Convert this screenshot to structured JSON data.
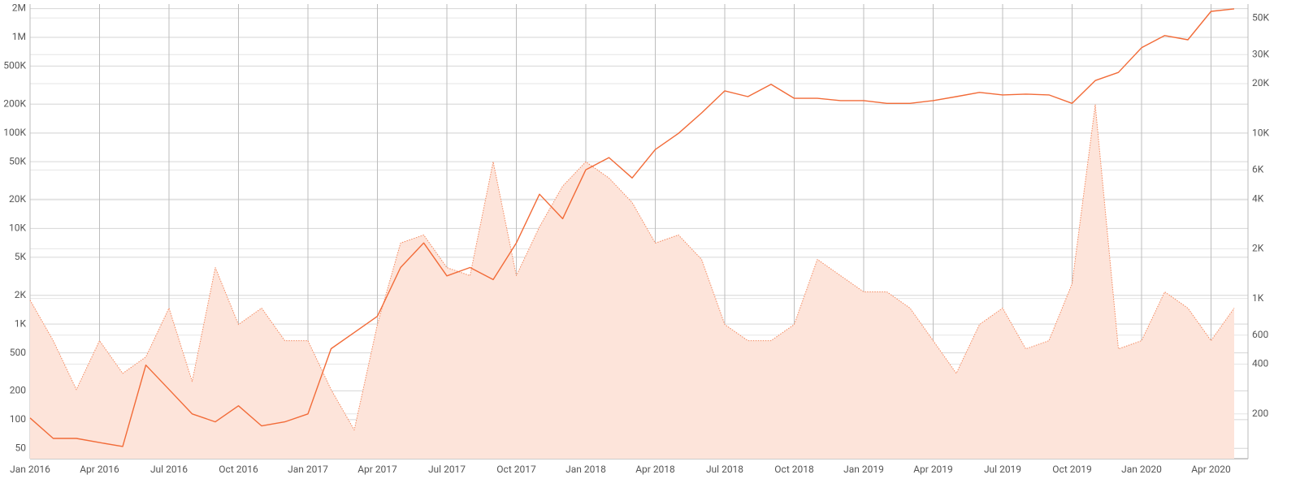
{
  "chart_data": {
    "type": "line",
    "x": [
      "2016-01",
      "2016-02",
      "2016-03",
      "2016-04",
      "2016-05",
      "2016-06",
      "2016-07",
      "2016-08",
      "2016-09",
      "2016-10",
      "2016-11",
      "2016-12",
      "2017-01",
      "2017-02",
      "2017-03",
      "2017-04",
      "2017-05",
      "2017-06",
      "2017-07",
      "2017-08",
      "2017-09",
      "2017-10",
      "2017-11",
      "2017-12",
      "2018-01",
      "2018-02",
      "2018-03",
      "2018-04",
      "2018-05",
      "2018-06",
      "2018-07",
      "2018-08",
      "2018-09",
      "2018-10",
      "2018-11",
      "2018-12",
      "2019-01",
      "2019-02",
      "2019-03",
      "2019-04",
      "2019-05",
      "2019-06",
      "2019-07",
      "2019-08",
      "2019-09",
      "2019-10",
      "2019-11",
      "2019-12",
      "2020-01",
      "2020-02",
      "2020-03",
      "2020-04",
      "2020-05"
    ],
    "xlim": [
      "2016-01",
      "2020-05"
    ],
    "xticks": [
      {
        "value": "2016-01",
        "label": "Jan 2016"
      },
      {
        "value": "2016-04",
        "label": "Apr 2016"
      },
      {
        "value": "2016-07",
        "label": "Jul 2016"
      },
      {
        "value": "2016-10",
        "label": "Oct 2016"
      },
      {
        "value": "2017-01",
        "label": "Jan 2017"
      },
      {
        "value": "2017-04",
        "label": "Apr 2017"
      },
      {
        "value": "2017-07",
        "label": "Jul 2017"
      },
      {
        "value": "2017-10",
        "label": "Oct 2017"
      },
      {
        "value": "2018-01",
        "label": "Jan 2018"
      },
      {
        "value": "2018-04",
        "label": "Apr 2018"
      },
      {
        "value": "2018-07",
        "label": "Jul 2018"
      },
      {
        "value": "2018-10",
        "label": "Oct 2018"
      },
      {
        "value": "2019-01",
        "label": "Jan 2019"
      },
      {
        "value": "2019-04",
        "label": "Apr 2019"
      },
      {
        "value": "2019-07",
        "label": "Jul 2019"
      },
      {
        "value": "2019-10",
        "label": "Oct 2019"
      },
      {
        "value": "2020-01",
        "label": "Jan 2020"
      },
      {
        "value": "2020-04",
        "label": "Apr 2020"
      }
    ],
    "ylim": [
      39,
      2230000
    ],
    "log_y": true,
    "yticks": [
      {
        "value": 50,
        "label": "50"
      },
      {
        "value": 100,
        "label": "100"
      },
      {
        "value": 200,
        "label": "200"
      },
      {
        "value": 500,
        "label": "500"
      },
      {
        "value": 1000,
        "label": "1K"
      },
      {
        "value": 2000,
        "label": "2K"
      },
      {
        "value": 5000,
        "label": "5K"
      },
      {
        "value": 10000,
        "label": "10K"
      },
      {
        "value": 20000,
        "label": "20K"
      },
      {
        "value": 50000,
        "label": "50K"
      },
      {
        "value": 100000,
        "label": "100K"
      },
      {
        "value": 200000,
        "label": "200K"
      },
      {
        "value": 500000,
        "label": "500K"
      },
      {
        "value": 1000000,
        "label": "1M"
      },
      {
        "value": 2000000,
        "label": "2M"
      }
    ],
    "y2lim": [
      107,
      60700
    ],
    "log_y2": true,
    "y2ticks": [
      {
        "value": 200,
        "label": "200"
      },
      {
        "value": 400,
        "label": "400"
      },
      {
        "value": 600,
        "label": "600"
      },
      {
        "value": 1000,
        "label": "1K"
      },
      {
        "value": 2000,
        "label": "2K"
      },
      {
        "value": 4000,
        "label": "4K"
      },
      {
        "value": 6000,
        "label": "6K"
      },
      {
        "value": 10000,
        "label": "10K"
      },
      {
        "value": 20000,
        "label": "20K"
      },
      {
        "value": 30000,
        "label": "30K"
      },
      {
        "value": 50000,
        "label": "50K"
      }
    ],
    "grid": true,
    "series": [
      {
        "color": "#f4895f",
        "style": "dotted",
        "fill": "#fde4da",
        "axis": "y",
        "values": [
          1780,
          670,
          206,
          670,
          305,
          452,
          1470,
          251,
          3900,
          990,
          1470,
          670,
          670,
          206,
          78,
          990,
          7030,
          8550,
          3900,
          3210,
          49900,
          3210,
          10400,
          27700,
          49900,
          33700,
          18700,
          7030,
          8550,
          4750,
          990,
          670,
          670,
          990,
          4750,
          3210,
          2170,
          2170,
          1470,
          670,
          305,
          990,
          1470,
          550,
          670,
          2640,
          196700,
          550,
          670,
          2170,
          1470,
          670,
          1470
        ]
      },
      {
        "color": "#f26b38",
        "style": "solid",
        "axis": "y2",
        "values": [
          189,
          142,
          142,
          134,
          127,
          395,
          281,
          200,
          179,
          224,
          169,
          179,
          200,
          496,
          622,
          780,
          1540,
          2170,
          1370,
          1540,
          1300,
          2170,
          4280,
          3040,
          6020,
          7130,
          5370,
          7980,
          10000,
          13300,
          18100,
          16700,
          19800,
          16300,
          16300,
          15800,
          15800,
          15200,
          15200,
          15800,
          16700,
          17700,
          17100,
          17300,
          17100,
          15200,
          20900,
          23400,
          33000,
          39100,
          36900,
          54800,
          56800
        ]
      }
    ]
  }
}
